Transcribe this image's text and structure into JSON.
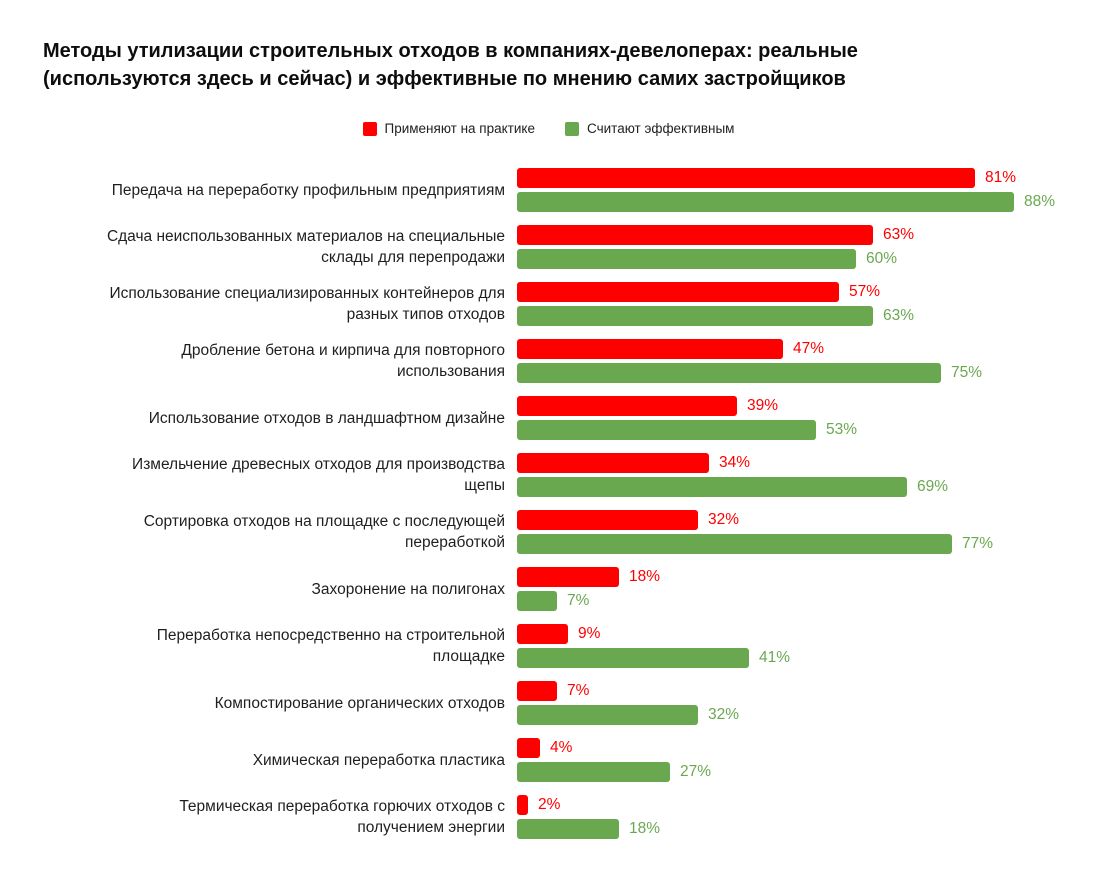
{
  "header": {
    "title_line1": "Методы утилизации строительных отходов в компаниях-девелоперах: реальные",
    "title_line2": "(используются здесь и сейчас) и эффективные по мнению самих застройщиков"
  },
  "legend": {
    "items": [
      {
        "label": "Применяют на практике",
        "color": "#ff0000"
      },
      {
        "label": "Считают эффективным",
        "color": "#6aa84f"
      }
    ]
  },
  "chart_data": {
    "type": "bar",
    "orientation": "horizontal",
    "title": "Методы утилизации строительных отходов в компаниях-девелоперах: реальные (используются здесь и сейчас) и эффективные по мнению самих застройщиков",
    "value_suffix": "%",
    "xlim": [
      0,
      100
    ],
    "grid": false,
    "legend_position": "top",
    "categories": [
      "Передача на переработку профильным предприятиям",
      "Сдача неиспользованных материалов на специальные склады для перепродажи",
      "Использование специализированных контейнеров для разных типов отходов",
      "Дробление бетона и кирпича для повторного использования",
      "Использование отходов в ландшафтном дизайне",
      "Измельчение древесных отходов для производства щепы",
      "Сортировка отходов на площадке с последующей переработкой",
      "Захоронение на полигонах",
      "Переработка непосредственно на строительной площадке",
      "Компостирование органических отходов",
      "Химическая переработка пластика",
      "Термическая переработка горючих отходов с получением энергии"
    ],
    "categories_wrapped": [
      [
        "Передача на переработку профильным предприятиям"
      ],
      [
        "Сдача неиспользованных материалов на специальные",
        "склады для перепродажи"
      ],
      [
        "Использование специализированных контейнеров для",
        "разных типов отходов"
      ],
      [
        "Дробление бетона и кирпича для повторного",
        "использования"
      ],
      [
        "Использование отходов в ландшафтном дизайне"
      ],
      [
        "Измельчение древесных отходов для производства",
        "щепы"
      ],
      [
        "Сортировка отходов на площадке с последующей",
        "переработкой"
      ],
      [
        "Захоронение на полигонах"
      ],
      [
        "Переработка непосредственно на строительной",
        "площадке"
      ],
      [
        "Компостирование органических отходов"
      ],
      [
        "Химическая переработка пластика"
      ],
      [
        "Термическая переработка горючих отходов с",
        "получением энергии"
      ]
    ],
    "series": [
      {
        "name": "Применяют на практике",
        "color": "#ff0000",
        "values": [
          81,
          63,
          57,
          47,
          39,
          34,
          32,
          18,
          9,
          7,
          4,
          2
        ]
      },
      {
        "name": "Считают эффективным",
        "color": "#6aa84f",
        "values": [
          88,
          60,
          63,
          75,
          53,
          69,
          77,
          7,
          41,
          32,
          27,
          18
        ]
      }
    ]
  }
}
